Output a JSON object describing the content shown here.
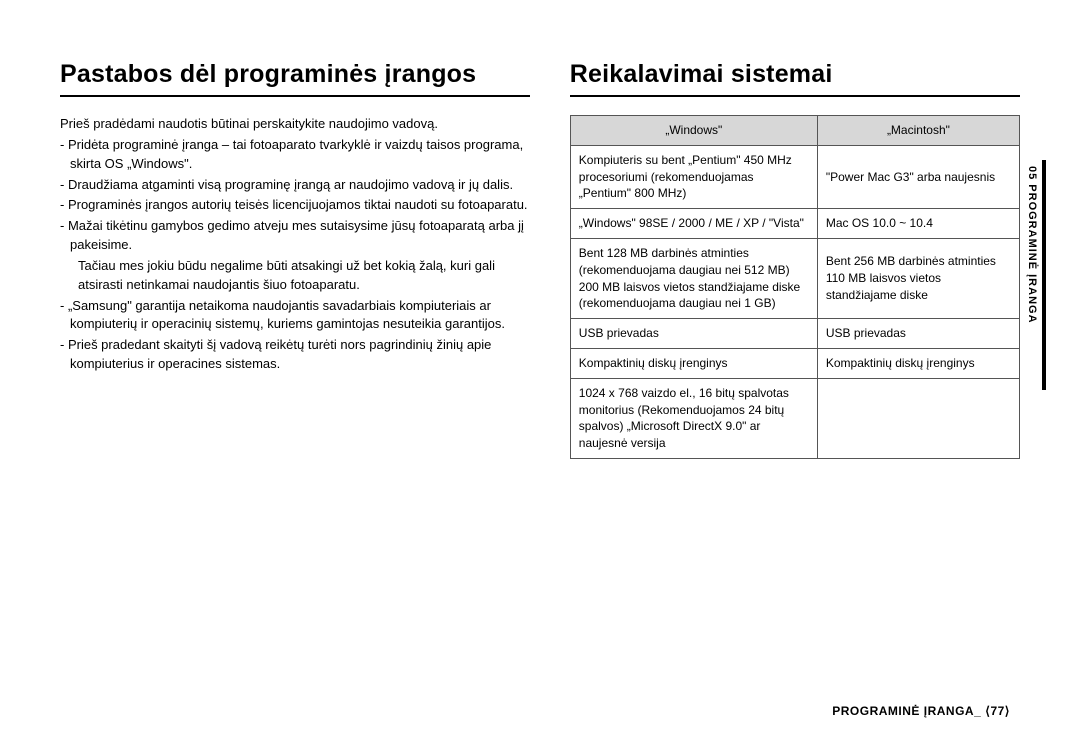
{
  "left": {
    "heading": "Pastabos dėl programinės įrangos",
    "intro": "Prieš pradėdami naudotis būtinai perskaitykite naudojimo vadovą.",
    "notes": [
      "Pridėta programinė įranga – tai fotoaparato tvarkyklė ir vaizdų taisos programa, skirta OS „Windows\".",
      "Draudžiama atgaminti visą programinę įrangą ar naudojimo vadovą ir jų dalis.",
      "Programinės įrangos autorių teisės licencijuojamos tiktai naudoti su fotoaparatu.",
      "Mažai tikėtinu gamybos gedimo atveju mes sutaisysime jūsų fotoaparatą arba jį pakeisime.",
      "„Samsung\" garantija netaikoma naudojantis savadarbiais kompiuteriais ar kompiuterių ir operacinių sistemų, kuriems gamintojas nesuteikia garantijos.",
      "Prieš pradedant skaityti šį vadovą reikėtų turėti nors pagrindinių žinių apie kompiuterius ir operacines sistemas."
    ],
    "sub_after_index": 3,
    "sub_text": "Tačiau mes jokiu būdu negalime būti atsakingi už bet kokią žalą, kuri gali atsirasti netinkamai naudojantis šiuo fotoaparatu."
  },
  "right": {
    "heading": "Reikalavimai sistemai",
    "header_win": "„Windows\"",
    "header_mac": "„Macintosh\"",
    "rows": [
      {
        "win": "Kompiuteris su bent „Pentium\" 450 MHz procesoriumi (rekomenduojamas „Pentium\" 800 MHz)",
        "mac": "\"Power Mac G3\" arba naujesnis"
      },
      {
        "win": "„Windows\" 98SE / 2000 / ME / XP / \"Vista\"",
        "mac": "Mac OS 10.0 ~ 10.4"
      },
      {
        "win": "Bent 128 MB darbinės atminties (rekomenduojama daugiau nei 512 MB) 200 MB laisvos vietos standžiajame diske (rekomenduojama daugiau nei 1 GB)",
        "mac": "Bent 256 MB darbinės atminties 110 MB laisvos vietos standžiajame diske"
      },
      {
        "win": "USB prievadas",
        "mac": "USB prievadas"
      },
      {
        "win": "Kompaktinių diskų įrenginys",
        "mac": "Kompaktinių diskų įrenginys"
      },
      {
        "win": "1024 x 768 vaizdo el., 16 bitų spalvotas monitorius (Rekomenduojamos 24 bitų spalvos) „Microsoft DirectX 9.0\" ar naujesnė versija",
        "mac": ""
      }
    ]
  },
  "side_tab": "05 PROGRAMINĖ ĮRANGA",
  "footer_label": "PROGRAMINĖ ĮRANGA_",
  "footer_page": "⟨77⟩"
}
